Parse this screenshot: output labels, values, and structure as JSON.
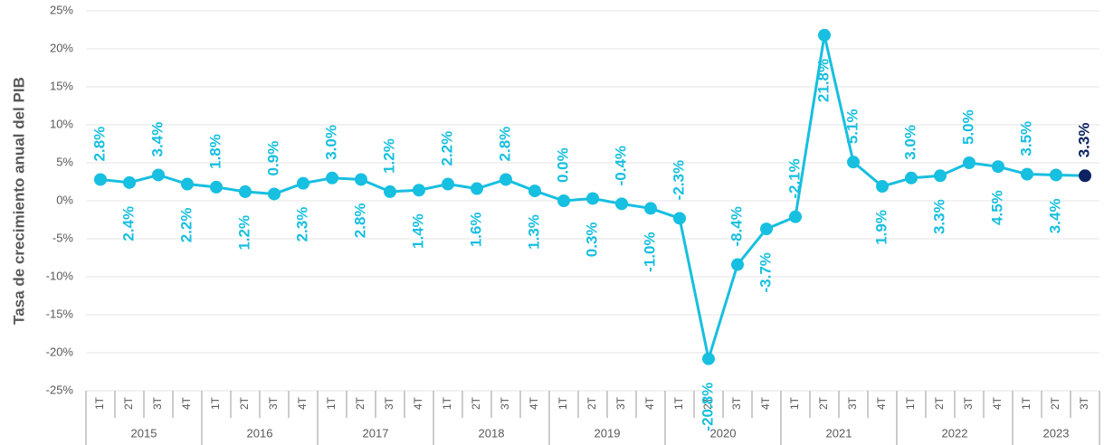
{
  "chart_data": {
    "type": "line",
    "y_label": "Tasa de crecimiento anual del PIB",
    "categories": [
      "1T",
      "2T",
      "3T",
      "4T",
      "1T",
      "2T",
      "3T",
      "4T",
      "1T",
      "2T",
      "3T",
      "4T",
      "1T",
      "2T",
      "3T",
      "4T",
      "1T",
      "2T",
      "3T",
      "4T",
      "1T",
      "2T",
      "3T",
      "4T",
      "1T",
      "2T",
      "3T",
      "4T",
      "1T",
      "2T",
      "3T",
      "4T",
      "1T",
      "2T",
      "3T"
    ],
    "years": [
      "2015",
      "2016",
      "2017",
      "2018",
      "2019",
      "2020",
      "2021",
      "2022",
      "2023"
    ],
    "series": [
      {
        "name": "PIB",
        "color": "#17bfe0",
        "last_point_color": "#0b2360",
        "values": [
          2.8,
          2.4,
          3.4,
          2.2,
          1.8,
          1.2,
          0.9,
          2.3,
          3.0,
          2.8,
          1.2,
          1.4,
          2.2,
          1.6,
          2.8,
          1.3,
          0.0,
          0.3,
          -0.4,
          -1.0,
          -2.3,
          -20.8,
          -8.4,
          -3.7,
          -2.1,
          21.8,
          5.1,
          1.9,
          3.0,
          3.3,
          5.0,
          4.5,
          3.5,
          3.4,
          3.3
        ],
        "value_labels": [
          "2.8%",
          "2.4%",
          "3.4%",
          "2.2%",
          "1.8%",
          "1.2%",
          "0.9%",
          "2.3%",
          "3.0%",
          "2.8%",
          "1.2%",
          "1.4%",
          "2.2%",
          "1.6%",
          "2.8%",
          "1.3%",
          "0.0%",
          "0.3%",
          "-0.4%",
          "-1.0%",
          "-2.3%",
          "-20.8%",
          "-8.4%",
          "-3.7%",
          "-2.1%",
          "21.8%",
          "5.1%",
          "1.9%",
          "3.0%",
          "3.3%",
          "5.0%",
          "4.5%",
          "3.5%",
          "3.4%",
          "3.3%"
        ]
      }
    ],
    "ylim": [
      -25,
      25
    ],
    "yticks": [
      {
        "value": -25,
        "label": "-25%"
      },
      {
        "value": -20,
        "label": "-20%"
      },
      {
        "value": -15,
        "label": "-15%"
      },
      {
        "value": -10,
        "label": "-10%"
      },
      {
        "value": -5,
        "label": "-5%"
      },
      {
        "value": 0,
        "label": "0%"
      },
      {
        "value": 5,
        "label": "5%"
      },
      {
        "value": 10,
        "label": "10%"
      },
      {
        "value": 15,
        "label": "15%"
      },
      {
        "value": 20,
        "label": "20%"
      },
      {
        "value": 25,
        "label": "25%"
      }
    ],
    "grid": true
  }
}
